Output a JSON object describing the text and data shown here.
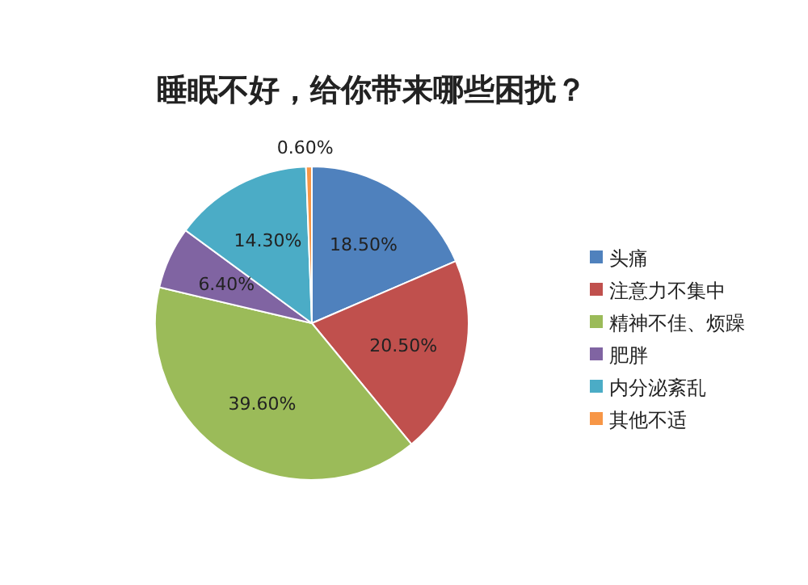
{
  "chart_data": {
    "type": "pie",
    "title": "睡眠不好，给你带来哪些困扰？",
    "categories": [
      "头痛",
      "注意力不集中",
      "精神不佳、烦躁",
      "肥胖",
      "内分泌紊乱",
      "其他不适"
    ],
    "values": [
      18.5,
      20.5,
      39.6,
      6.4,
      14.3,
      0.6
    ],
    "colors": [
      "#4f81bd",
      "#c0504d",
      "#9bbb59",
      "#8064a2",
      "#4bacc6",
      "#f79646"
    ],
    "value_labels": [
      "18.50%",
      "20.50%",
      "39.60%",
      "6.40%",
      "14.30%",
      "0.60%"
    ],
    "legend": "right"
  }
}
